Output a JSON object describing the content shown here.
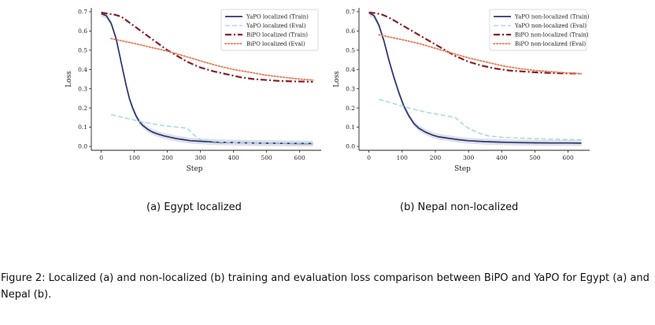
{
  "chart_data": [
    {
      "type": "line",
      "subcaption": "(a) Egypt localized",
      "xlabel": "Step",
      "ylabel": "Loss",
      "xlim": [
        -30,
        665
      ],
      "ylim": [
        -0.02,
        0.72
      ],
      "xticks": [
        0,
        100,
        200,
        300,
        400,
        500,
        600
      ],
      "yticks": [
        0.0,
        0.1,
        0.2,
        0.3,
        0.4,
        0.5,
        0.6,
        0.7
      ],
      "legend_position": "top-right",
      "series": [
        {
          "name": "YaPO localized (Train)",
          "style": "solid",
          "color": "#2b3470",
          "band": true,
          "x": [
            0,
            15,
            30,
            45,
            55,
            65,
            75,
            85,
            95,
            105,
            115,
            125,
            140,
            155,
            170,
            190,
            210,
            230,
            250,
            270,
            300,
            350,
            400,
            450,
            500,
            550,
            600,
            640
          ],
          "y": [
            0.69,
            0.68,
            0.64,
            0.56,
            0.48,
            0.4,
            0.32,
            0.25,
            0.2,
            0.16,
            0.13,
            0.11,
            0.09,
            0.075,
            0.065,
            0.055,
            0.047,
            0.04,
            0.035,
            0.03,
            0.027,
            0.022,
            0.02,
            0.018,
            0.017,
            0.016,
            0.015,
            0.015
          ]
        },
        {
          "name": "YaPO localized (Eval)",
          "style": "dashed",
          "color": "#a8dbe3",
          "band": false,
          "x": [
            30,
            80,
            130,
            180,
            230,
            260,
            280,
            300,
            350,
            400,
            450,
            500,
            550,
            600,
            640
          ],
          "y": [
            0.165,
            0.145,
            0.125,
            0.11,
            0.1,
            0.095,
            0.06,
            0.035,
            0.025,
            0.02,
            0.018,
            0.017,
            0.017,
            0.017,
            0.017
          ]
        },
        {
          "name": "BiPO localized (Train)",
          "style": "dashdot",
          "color": "#8a1c25",
          "band": false,
          "x": [
            0,
            20,
            40,
            60,
            80,
            100,
            120,
            140,
            160,
            180,
            200,
            220,
            240,
            260,
            280,
            300,
            340,
            380,
            420,
            460,
            500,
            540,
            580,
            620,
            640
          ],
          "y": [
            0.695,
            0.69,
            0.685,
            0.675,
            0.65,
            0.625,
            0.6,
            0.575,
            0.55,
            0.525,
            0.5,
            0.48,
            0.46,
            0.44,
            0.425,
            0.41,
            0.39,
            0.375,
            0.36,
            0.35,
            0.345,
            0.34,
            0.338,
            0.337,
            0.336
          ]
        },
        {
          "name": "BiPO localized (Eval)",
          "style": "dotted",
          "color": "#e67a55",
          "band": false,
          "x": [
            30,
            100,
            150,
            200,
            250,
            300,
            350,
            400,
            450,
            500,
            550,
            600,
            640
          ],
          "y": [
            0.56,
            0.535,
            0.515,
            0.495,
            0.47,
            0.445,
            0.42,
            0.4,
            0.385,
            0.37,
            0.36,
            0.35,
            0.345
          ]
        }
      ]
    },
    {
      "type": "line",
      "subcaption": "(b) Nepal non-localized",
      "xlabel": "Step",
      "ylabel": "Loss",
      "xlim": [
        -30,
        665
      ],
      "ylim": [
        -0.02,
        0.72
      ],
      "xticks": [
        0,
        100,
        200,
        300,
        400,
        500,
        600
      ],
      "yticks": [
        0.0,
        0.1,
        0.2,
        0.3,
        0.4,
        0.5,
        0.6,
        0.7
      ],
      "legend_position": "top-right",
      "series": [
        {
          "name": "YaPO non-localized (Train)",
          "style": "solid",
          "color": "#2b3470",
          "band": true,
          "x": [
            0,
            15,
            30,
            45,
            60,
            75,
            90,
            105,
            120,
            135,
            150,
            170,
            190,
            210,
            230,
            250,
            270,
            300,
            350,
            400,
            450,
            500,
            550,
            600,
            640
          ],
          "y": [
            0.695,
            0.68,
            0.63,
            0.55,
            0.45,
            0.36,
            0.28,
            0.21,
            0.16,
            0.12,
            0.095,
            0.075,
            0.06,
            0.05,
            0.045,
            0.04,
            0.035,
            0.03,
            0.025,
            0.022,
            0.02,
            0.019,
            0.018,
            0.018,
            0.017
          ]
        },
        {
          "name": "YaPO non-localized (Eval)",
          "style": "dashed",
          "color": "#a8dbe3",
          "band": false,
          "x": [
            30,
            80,
            130,
            180,
            230,
            260,
            280,
            300,
            330,
            360,
            400,
            450,
            500,
            550,
            600,
            640
          ],
          "y": [
            0.245,
            0.22,
            0.195,
            0.175,
            0.16,
            0.15,
            0.12,
            0.095,
            0.07,
            0.055,
            0.048,
            0.044,
            0.04,
            0.038,
            0.036,
            0.035
          ]
        },
        {
          "name": "BiPO non-localized (Train)",
          "style": "dashdot",
          "color": "#8a1c25",
          "band": false,
          "x": [
            0,
            20,
            40,
            60,
            80,
            100,
            120,
            140,
            160,
            180,
            200,
            220,
            240,
            260,
            280,
            300,
            340,
            380,
            420,
            460,
            500,
            540,
            580,
            620,
            640
          ],
          "y": [
            0.695,
            0.693,
            0.685,
            0.67,
            0.65,
            0.63,
            0.61,
            0.59,
            0.57,
            0.55,
            0.53,
            0.51,
            0.49,
            0.47,
            0.455,
            0.44,
            0.42,
            0.405,
            0.395,
            0.39,
            0.385,
            0.382,
            0.38,
            0.379,
            0.378
          ]
        },
        {
          "name": "BiPO non-localized (Eval)",
          "style": "dotted",
          "color": "#e67a55",
          "band": false,
          "x": [
            30,
            100,
            150,
            200,
            250,
            300,
            350,
            400,
            450,
            500,
            550,
            600,
            640
          ],
          "y": [
            0.58,
            0.555,
            0.535,
            0.51,
            0.485,
            0.46,
            0.44,
            0.42,
            0.405,
            0.395,
            0.388,
            0.382,
            0.378
          ]
        }
      ]
    }
  ],
  "figure": {
    "caption": "Figure 2: Localized (a) and non-localized (b) training and evaluation loss comparison between BiPO and YaPO for Egypt (a) and Nepal (b)."
  }
}
